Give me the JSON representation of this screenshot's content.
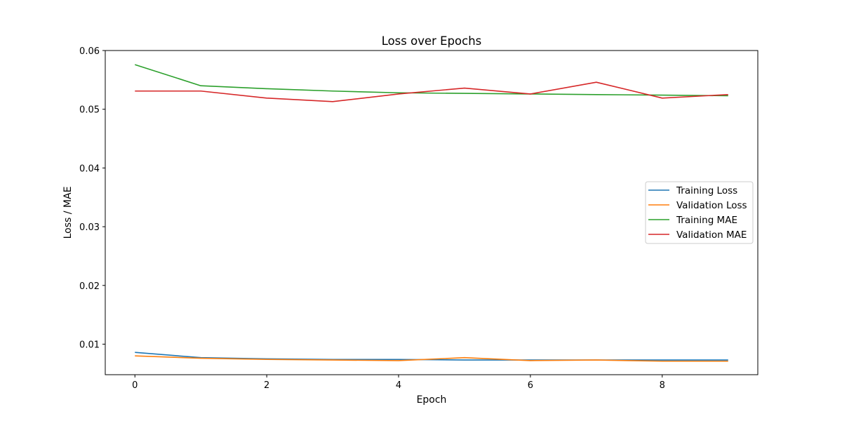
{
  "chart_data": {
    "type": "line",
    "title": "Loss over Epochs",
    "xlabel": "Epoch",
    "ylabel": "Loss / MAE",
    "x": [
      0,
      1,
      2,
      3,
      4,
      5,
      6,
      7,
      8,
      9
    ],
    "xlim": [
      -0.45,
      9.45
    ],
    "ylim": [
      0.0048,
      0.06
    ],
    "xticks": [
      0,
      2,
      4,
      6,
      8
    ],
    "yticks": [
      0.01,
      0.02,
      0.03,
      0.04,
      0.05,
      0.06
    ],
    "xtick_labels": [
      "0",
      "2",
      "4",
      "6",
      "8"
    ],
    "ytick_labels": [
      "0.01",
      "0.02",
      "0.03",
      "0.04",
      "0.05",
      "0.06"
    ],
    "grid": false,
    "legend_position": "center-right",
    "series": [
      {
        "name": "Training Loss",
        "color": "#1f77b4",
        "values": [
          0.0086,
          0.0077,
          0.0075,
          0.0074,
          0.0074,
          0.0073,
          0.0073,
          0.0073,
          0.0073,
          0.0073
        ]
      },
      {
        "name": "Validation Loss",
        "color": "#ff7f0e",
        "values": [
          0.008,
          0.0076,
          0.0074,
          0.0073,
          0.0072,
          0.0077,
          0.0072,
          0.0073,
          0.0071,
          0.0071
        ]
      },
      {
        "name": "Training MAE",
        "color": "#2ca02c",
        "values": [
          0.0576,
          0.054,
          0.0535,
          0.0531,
          0.0528,
          0.0527,
          0.0526,
          0.0525,
          0.0524,
          0.0523
        ]
      },
      {
        "name": "Validation MAE",
        "color": "#d62728",
        "values": [
          0.0531,
          0.0531,
          0.0519,
          0.0513,
          0.0526,
          0.0536,
          0.0526,
          0.0546,
          0.0519,
          0.0525
        ]
      }
    ]
  }
}
